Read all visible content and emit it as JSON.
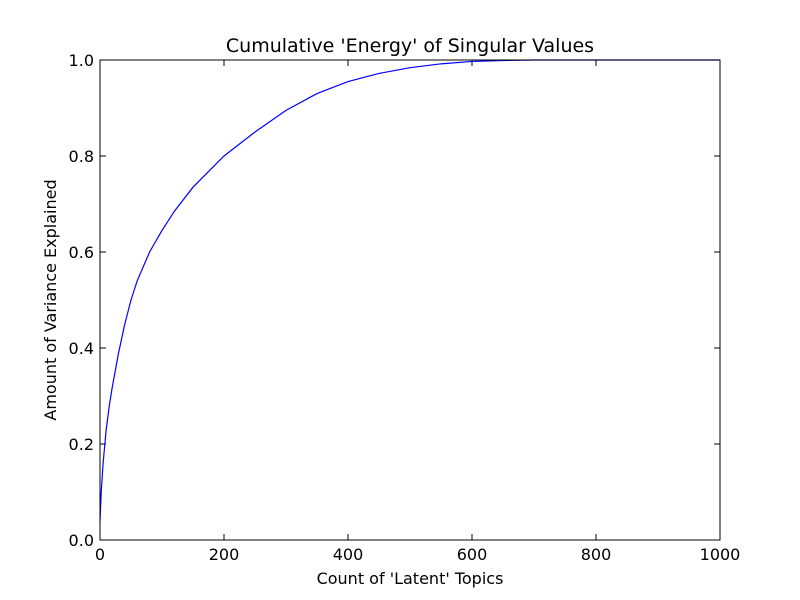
{
  "chart_data": {
    "type": "line",
    "title": "Cumulative 'Energy' of Singular Values",
    "xlabel": "Count of 'Latent' Topics",
    "ylabel": "Amount of Variance Explained",
    "xlim": [
      0,
      1000
    ],
    "ylim": [
      0.0,
      1.0
    ],
    "xticks": [
      0,
      200,
      400,
      600,
      800,
      1000
    ],
    "xtick_labels": [
      "0",
      "200",
      "400",
      "600",
      "800",
      "1000"
    ],
    "yticks": [
      0.0,
      0.2,
      0.4,
      0.6,
      0.8,
      1.0
    ],
    "ytick_labels": [
      "0.0",
      "0.2",
      "0.4",
      "0.6",
      "0.8",
      "1.0"
    ],
    "grid": false,
    "line_color": "#0000ff",
    "series": [
      {
        "x": [
          0,
          2,
          5,
          10,
          15,
          20,
          30,
          40,
          50,
          60,
          80,
          100,
          120,
          150,
          200,
          250,
          300,
          350,
          400,
          450,
          500,
          550,
          600,
          650,
          700
        ],
        "y": [
          0.04,
          0.1,
          0.16,
          0.23,
          0.28,
          0.32,
          0.39,
          0.45,
          0.5,
          0.54,
          0.6,
          0.645,
          0.685,
          0.735,
          0.8,
          0.85,
          0.895,
          0.93,
          0.955,
          0.972,
          0.984,
          0.992,
          0.997,
          0.999,
          1.0
        ]
      }
    ]
  }
}
